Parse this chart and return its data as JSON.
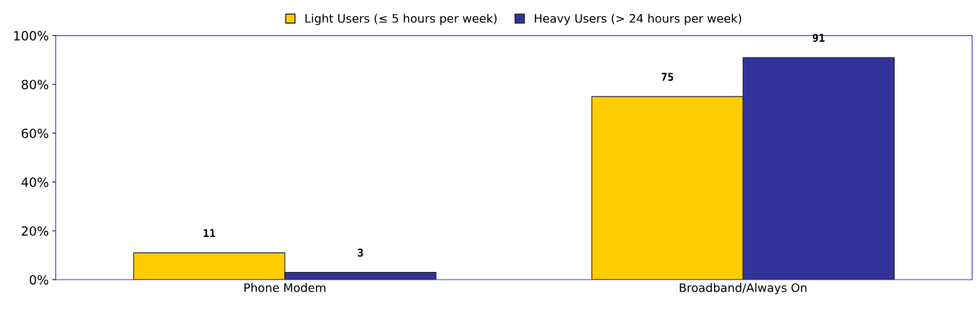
{
  "chart_data": {
    "type": "bar",
    "categories": [
      "Phone Modem",
      "Broadband/Always On"
    ],
    "series": [
      {
        "name": "Light Users (≤ 5 hours per week)",
        "color": "#ffcc00",
        "values": [
          11,
          75
        ]
      },
      {
        "name": "Heavy Users (> 24 hours per week)",
        "color": "#333399",
        "values": [
          3,
          91
        ]
      }
    ],
    "ylim": [
      0,
      100
    ],
    "yticks": [
      {
        "value": 0,
        "label": "0%"
      },
      {
        "value": 20,
        "label": "20%"
      },
      {
        "value": 40,
        "label": "40%"
      },
      {
        "value": 60,
        "label": "60%"
      },
      {
        "value": 80,
        "label": "80%"
      },
      {
        "value": 100,
        "label": "100%"
      }
    ],
    "data_labels": true,
    "legend": "top",
    "grid": false
  }
}
